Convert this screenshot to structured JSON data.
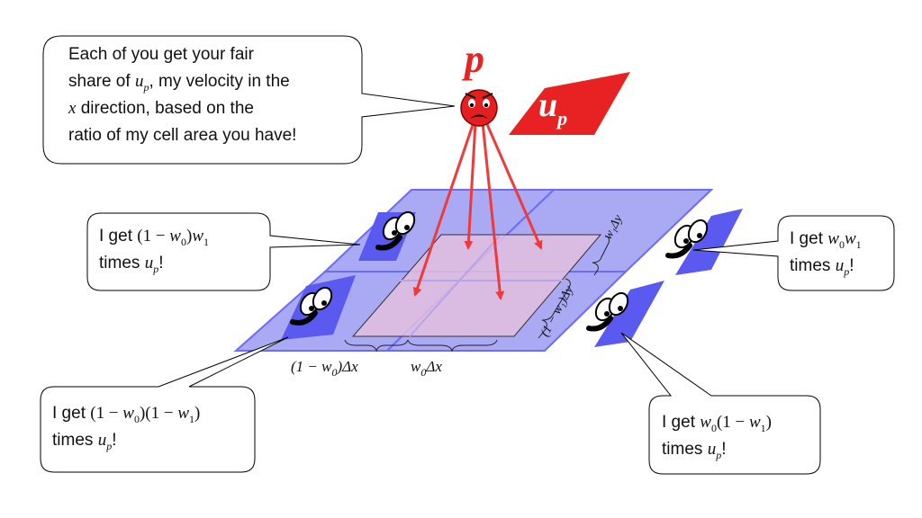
{
  "particle": {
    "label": "p",
    "velocity_label": "u",
    "velocity_sub": "p",
    "color": "#e82222"
  },
  "speech": {
    "particle": {
      "line1": "Each of you get your fair",
      "line2_pre": "share of ",
      "line2_var": "u",
      "line2_sub": "p",
      "line2_post": ", my velocity in the",
      "line3_var": "x",
      "line3_post": " direction, based on the",
      "line4": "ratio of my cell area you have!"
    },
    "top_left": {
      "pre": "I get ",
      "expr_a": "(1 − ",
      "w0": "w",
      "w0_sub": "0",
      "expr_b": ")",
      "w1": "w",
      "w1_sub": "1",
      "times": "times ",
      "u": "u",
      "u_sub": "p",
      "end": "!"
    },
    "top_right": {
      "pre": "I get ",
      "w0": "w",
      "w0_sub": "0",
      "w1": "w",
      "w1_sub": "1",
      "times": "times ",
      "u": "u",
      "u_sub": "p",
      "end": "!"
    },
    "bottom_left": {
      "pre": "I get ",
      "expr_a": "(1 − ",
      "w0": "w",
      "w0_sub": "0",
      "expr_b": ")(1 − ",
      "w1": "w",
      "w1_sub": "1",
      "expr_c": ")",
      "times": "times ",
      "u": "u",
      "u_sub": "p",
      "end": "!"
    },
    "bottom_right": {
      "pre": "I get ",
      "w0": "w",
      "w0_sub": "0",
      "expr_a": "(1 − ",
      "w1": "w",
      "w1_sub": "1",
      "expr_b": ")",
      "times": "times ",
      "u": "u",
      "u_sub": "p",
      "end": "!"
    }
  },
  "dimensions": {
    "left": "(1 − w",
    "left_sub": "0",
    "left_post": ")Δx",
    "right": "w",
    "right_sub": "0",
    "right_post": "Δx",
    "side_top": "w₁Δy",
    "side_bottom": "(1 − w₁)Δy"
  },
  "colors": {
    "grid_fill": "#a9a9f4",
    "grid_stroke": "#6b6bff",
    "area_fill": "#e3bede",
    "arrow": "#f03a3a",
    "flag": "#5a5af0"
  }
}
